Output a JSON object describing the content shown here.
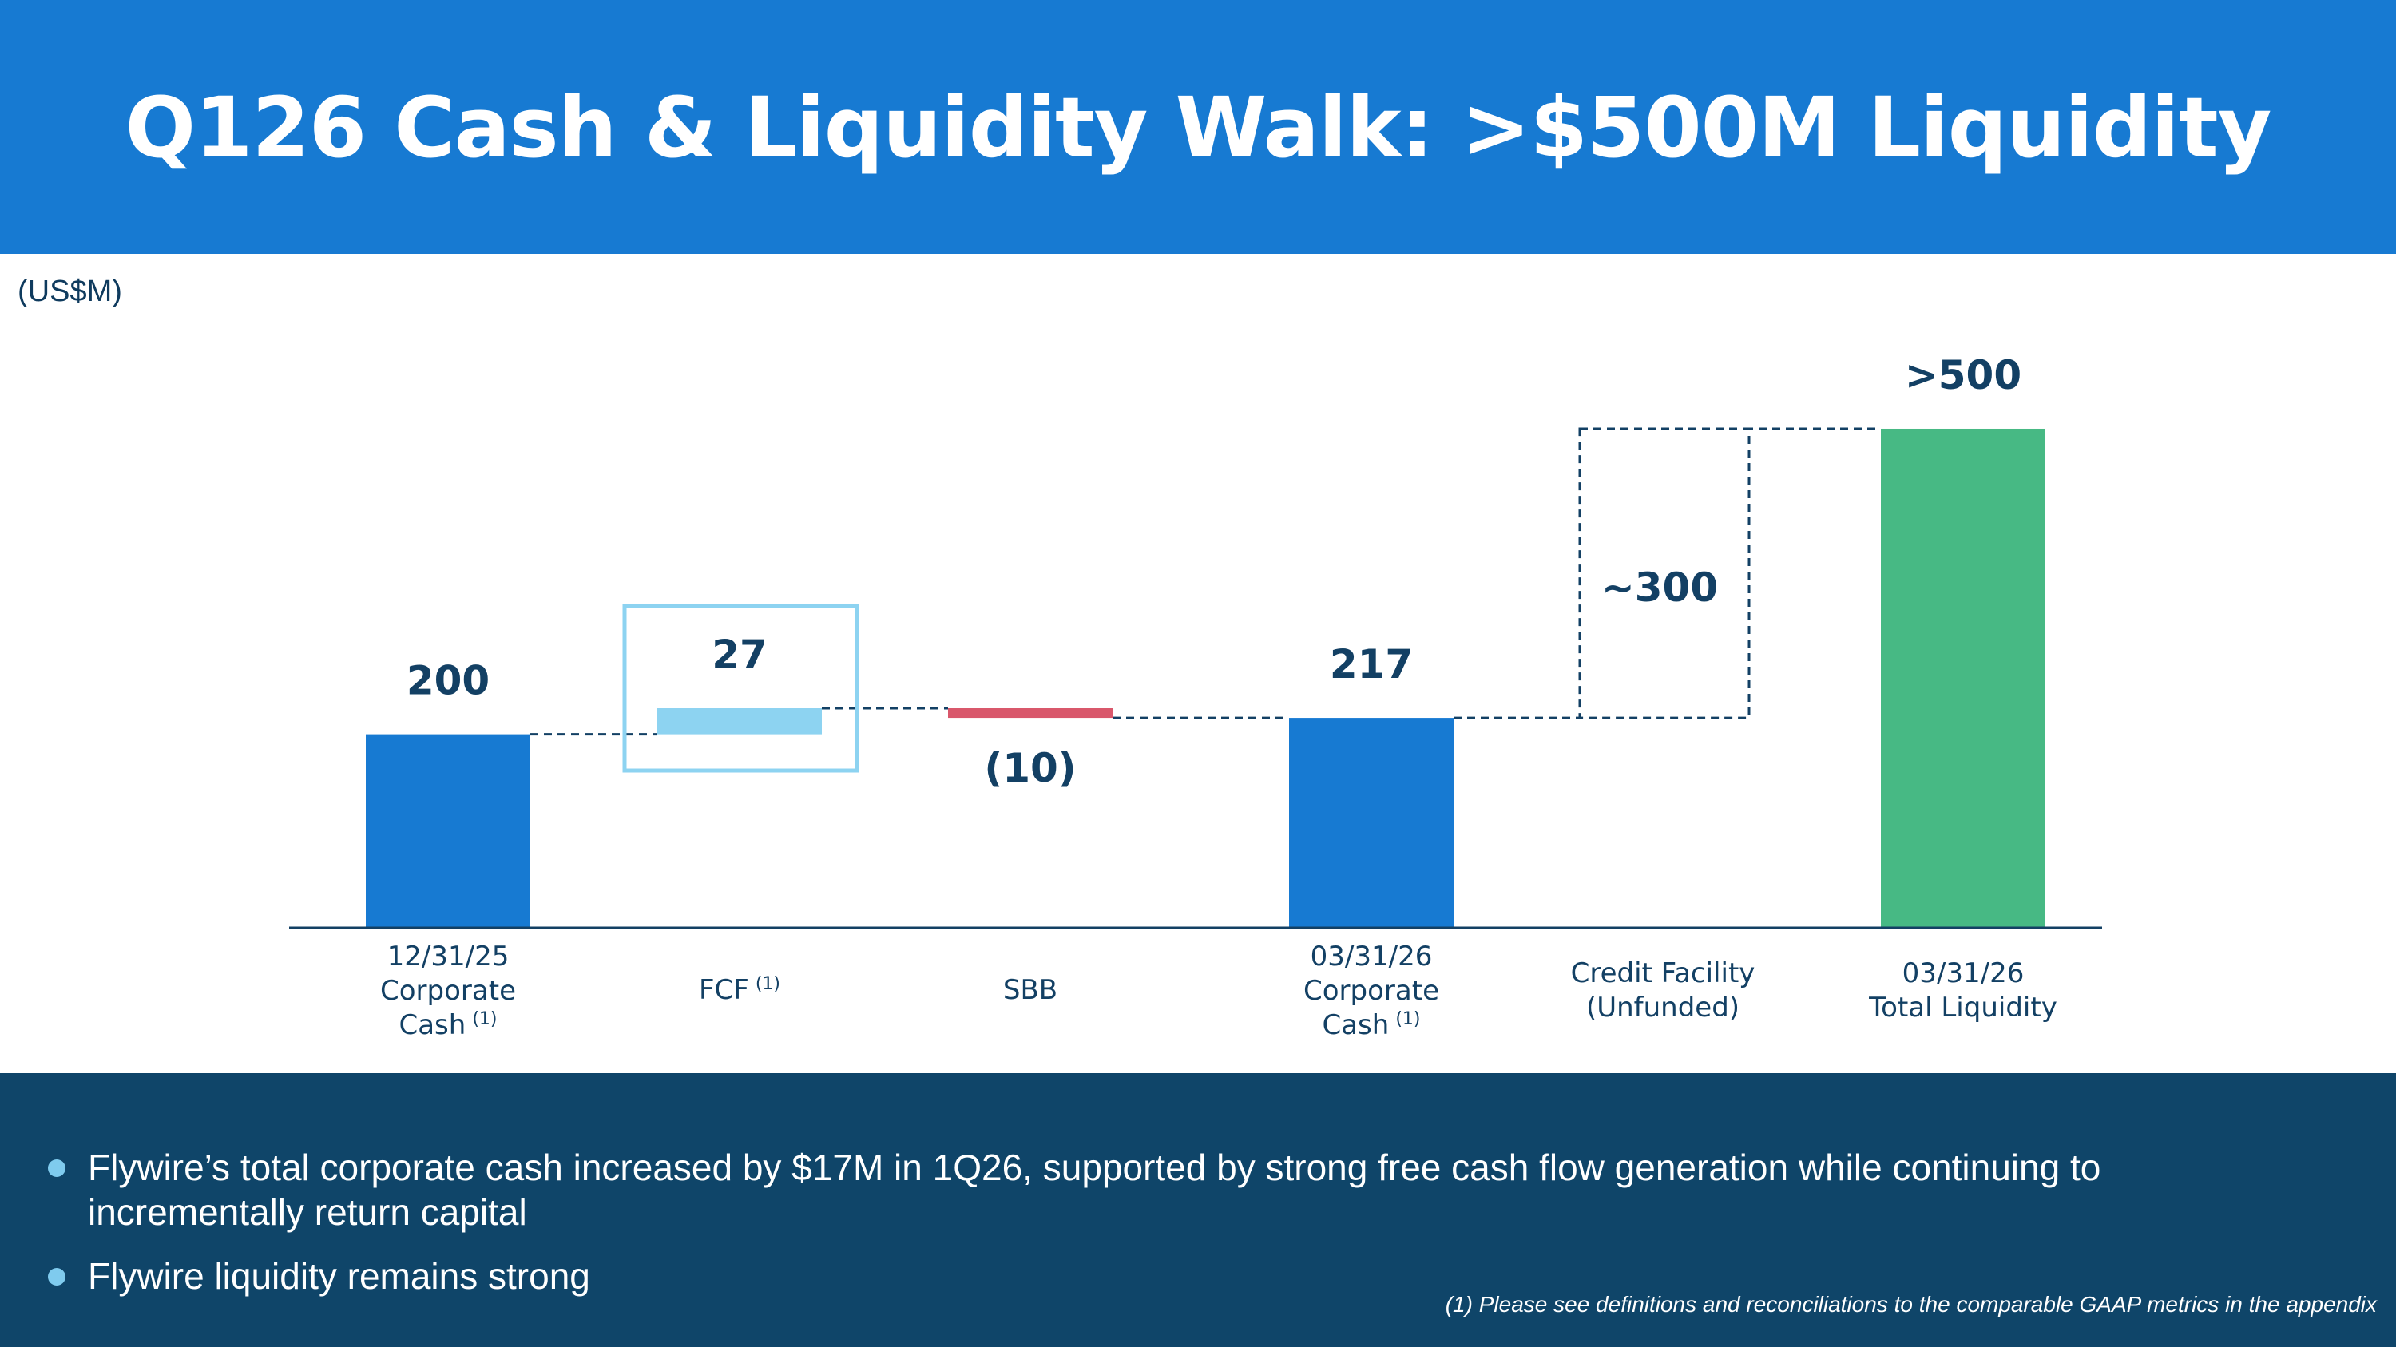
{
  "title": "Q126 Cash & Liquidity Walk: >$500M Liquidity",
  "units": "(US$M)",
  "chart_data": {
    "type": "waterfall",
    "title": "Q126 Cash & Liquidity Walk: >$500M Liquidity",
    "ylabel": "(US$M)",
    "steps": [
      {
        "label_lines": [
          "12/31/25",
          "Corporate",
          "Cash"
        ],
        "footnote_ref": "(1)",
        "kind": "total",
        "value": 200,
        "value_label": "200",
        "color": "#177ad2"
      },
      {
        "label_lines": [
          "FCF"
        ],
        "footnote_ref": "(1)",
        "kind": "delta",
        "value": 27,
        "value_label": "27",
        "color": "#8dd3f1",
        "highlighted": true
      },
      {
        "label_lines": [
          "SBB"
        ],
        "footnote_ref": "",
        "kind": "delta",
        "value": -10,
        "value_label": "(10)",
        "color": "#d9576b"
      },
      {
        "label_lines": [
          "03/31/26",
          "Corporate",
          "Cash"
        ],
        "footnote_ref": "(1)",
        "kind": "total",
        "value": 217,
        "value_label": "217",
        "color": "#177ad2"
      },
      {
        "label_lines": [
          "Credit Facility",
          "(Unfunded)"
        ],
        "footnote_ref": "",
        "kind": "delta",
        "value": 300,
        "value_label": "~300",
        "style": "dashed-outline"
      },
      {
        "label_lines": [
          "03/31/26",
          "Total Liquidity"
        ],
        "footnote_ref": "",
        "kind": "total",
        "value": 517,
        "value_label": ">500",
        "color": "#47b984"
      }
    ]
  },
  "bullets": [
    "Flywire’s total corporate cash increased by $17M in 1Q26, supported by strong free cash flow generation while continuing to incrementally return capital",
    "Flywire liquidity remains strong"
  ],
  "footnote": "(1) Please see definitions and reconciliations to the comparable GAAP metrics in the appendix"
}
